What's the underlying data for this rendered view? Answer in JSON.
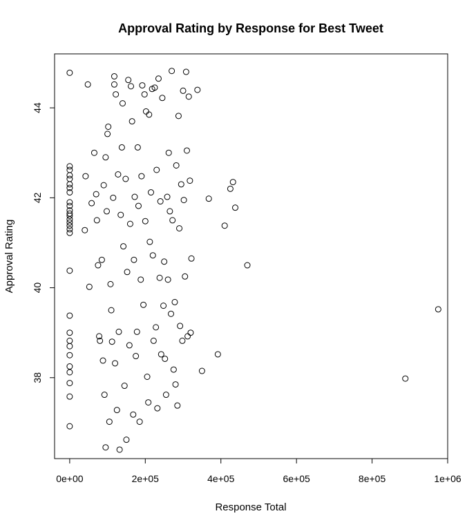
{
  "chart_data": {
    "type": "scatter",
    "title": "Approval Rating by Response for Best Tweet",
    "xlabel": "Response Total",
    "ylabel": "Approval Rating",
    "xlim": [
      -40000,
      1000000
    ],
    "ylim": [
      36.2,
      45.2
    ],
    "x_ticks": [
      0,
      200000,
      400000,
      600000,
      800000,
      1000000
    ],
    "x_tick_labels": [
      "0e+00",
      "2e+05",
      "4e+05",
      "6e+05",
      "8e+05",
      "1e+06"
    ],
    "y_ticks": [
      38,
      40,
      42,
      44
    ],
    "y_tick_labels": [
      "38",
      "40",
      "42",
      "44"
    ],
    "grid": false,
    "legend": "none",
    "marker": "open-circle",
    "colors": {
      "point": "#000000",
      "axis": "#000000",
      "background": "#ffffff"
    },
    "points": [
      [
        0,
        44.78
      ],
      [
        0,
        42.7
      ],
      [
        0,
        42.62
      ],
      [
        0,
        42.5
      ],
      [
        0,
        42.42
      ],
      [
        0,
        42.3
      ],
      [
        0,
        42.22
      ],
      [
        0,
        42.12
      ],
      [
        0,
        41.9
      ],
      [
        0,
        41.82
      ],
      [
        0,
        41.72
      ],
      [
        0,
        41.65
      ],
      [
        0,
        41.6
      ],
      [
        0,
        41.52
      ],
      [
        0,
        41.45
      ],
      [
        0,
        41.38
      ],
      [
        0,
        41.3
      ],
      [
        0,
        41.22
      ],
      [
        0,
        40.38
      ],
      [
        0,
        39.38
      ],
      [
        0,
        39.0
      ],
      [
        0,
        38.82
      ],
      [
        0,
        38.7
      ],
      [
        0,
        38.5
      ],
      [
        0,
        38.25
      ],
      [
        0,
        38.12
      ],
      [
        0,
        37.88
      ],
      [
        0,
        37.58
      ],
      [
        0,
        36.92
      ],
      [
        42000,
        42.48
      ],
      [
        40000,
        41.28
      ],
      [
        48000,
        44.52
      ],
      [
        52000,
        40.02
      ],
      [
        58000,
        41.88
      ],
      [
        65000,
        43.0
      ],
      [
        70000,
        42.08
      ],
      [
        72000,
        41.5
      ],
      [
        75000,
        40.5
      ],
      [
        78000,
        38.92
      ],
      [
        80000,
        38.82
      ],
      [
        85000,
        40.62
      ],
      [
        88000,
        38.38
      ],
      [
        90000,
        42.28
      ],
      [
        92000,
        37.62
      ],
      [
        95000,
        36.45
      ],
      [
        95000,
        42.9
      ],
      [
        98000,
        41.7
      ],
      [
        100000,
        43.42
      ],
      [
        102000,
        43.58
      ],
      [
        105000,
        37.02
      ],
      [
        108000,
        40.08
      ],
      [
        110000,
        39.5
      ],
      [
        112000,
        38.8
      ],
      [
        115000,
        42.0
      ],
      [
        118000,
        44.7
      ],
      [
        118000,
        44.52
      ],
      [
        120000,
        38.32
      ],
      [
        122000,
        44.3
      ],
      [
        125000,
        37.28
      ],
      [
        128000,
        42.52
      ],
      [
        130000,
        39.02
      ],
      [
        132000,
        36.4
      ],
      [
        135000,
        41.62
      ],
      [
        138000,
        43.12
      ],
      [
        140000,
        44.1
      ],
      [
        142000,
        40.92
      ],
      [
        145000,
        37.82
      ],
      [
        148000,
        42.42
      ],
      [
        150000,
        36.62
      ],
      [
        152000,
        40.35
      ],
      [
        155000,
        44.62
      ],
      [
        158000,
        38.72
      ],
      [
        160000,
        41.42
      ],
      [
        162000,
        44.48
      ],
      [
        165000,
        43.7
      ],
      [
        168000,
        37.18
      ],
      [
        170000,
        40.62
      ],
      [
        172000,
        42.02
      ],
      [
        175000,
        38.48
      ],
      [
        178000,
        39.02
      ],
      [
        180000,
        43.12
      ],
      [
        182000,
        41.82
      ],
      [
        185000,
        37.02
      ],
      [
        188000,
        40.18
      ],
      [
        190000,
        42.48
      ],
      [
        192000,
        44.5
      ],
      [
        195000,
        39.62
      ],
      [
        198000,
        44.3
      ],
      [
        200000,
        41.48
      ],
      [
        202000,
        43.92
      ],
      [
        205000,
        38.02
      ],
      [
        208000,
        37.45
      ],
      [
        210000,
        43.85
      ],
      [
        212000,
        41.02
      ],
      [
        215000,
        42.12
      ],
      [
        218000,
        44.42
      ],
      [
        220000,
        40.72
      ],
      [
        222000,
        38.82
      ],
      [
        225000,
        44.45
      ],
      [
        228000,
        39.12
      ],
      [
        230000,
        42.62
      ],
      [
        232000,
        37.32
      ],
      [
        235000,
        44.65
      ],
      [
        238000,
        40.22
      ],
      [
        240000,
        41.92
      ],
      [
        242000,
        38.52
      ],
      [
        245000,
        44.22
      ],
      [
        248000,
        39.6
      ],
      [
        250000,
        40.58
      ],
      [
        252000,
        38.42
      ],
      [
        255000,
        37.62
      ],
      [
        258000,
        42.02
      ],
      [
        260000,
        40.18
      ],
      [
        262000,
        43.0
      ],
      [
        265000,
        41.7
      ],
      [
        268000,
        39.42
      ],
      [
        270000,
        44.82
      ],
      [
        272000,
        41.5
      ],
      [
        275000,
        38.18
      ],
      [
        278000,
        39.68
      ],
      [
        280000,
        37.85
      ],
      [
        282000,
        42.72
      ],
      [
        285000,
        37.38
      ],
      [
        288000,
        43.82
      ],
      [
        290000,
        41.32
      ],
      [
        292000,
        39.15
      ],
      [
        295000,
        42.3
      ],
      [
        298000,
        38.82
      ],
      [
        300000,
        44.38
      ],
      [
        302000,
        41.95
      ],
      [
        305000,
        40.25
      ],
      [
        308000,
        44.8
      ],
      [
        310000,
        43.05
      ],
      [
        312000,
        38.92
      ],
      [
        315000,
        44.25
      ],
      [
        318000,
        42.38
      ],
      [
        320000,
        39.0
      ],
      [
        322000,
        40.65
      ],
      [
        338000,
        44.4
      ],
      [
        350000,
        38.15
      ],
      [
        368000,
        41.98
      ],
      [
        392000,
        38.52
      ],
      [
        410000,
        41.38
      ],
      [
        425000,
        42.2
      ],
      [
        432000,
        42.35
      ],
      [
        438000,
        41.78
      ],
      [
        470000,
        40.5
      ],
      [
        888000,
        37.98
      ],
      [
        975000,
        39.52
      ]
    ]
  }
}
